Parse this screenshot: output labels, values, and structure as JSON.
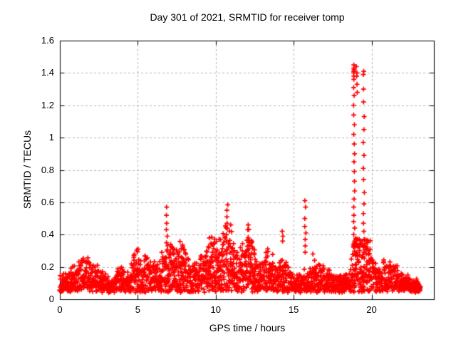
{
  "chart_data": {
    "type": "scatter",
    "title": "Day 301 of 2021, SRMTID for receiver tomp",
    "xlabel": "GPS time / hours",
    "ylabel": "SRMTID / TECUs",
    "xlim": [
      0,
      24
    ],
    "ylim": [
      0,
      1.6
    ],
    "xticks": {
      "values": [
        0,
        5,
        10,
        15,
        20
      ],
      "labels": [
        "0",
        "5",
        "10",
        "15",
        "20"
      ]
    },
    "yticks": {
      "values": [
        0,
        0.2,
        0.4,
        0.6,
        0.8,
        1.0,
        1.2,
        1.4,
        1.6
      ],
      "labels": [
        "0",
        "0.2",
        "0.4",
        "0.6",
        "0.8",
        "1",
        "1.2",
        "1.4",
        "1.6"
      ]
    },
    "grid": true,
    "legend": "none",
    "marker": "plus",
    "marker_color": "#ff0000",
    "grid_color": "#b4b4b4",
    "axis_color": "#000000",
    "baseline": 0.04,
    "sample_step_hours": 0.04,
    "data_end_hour": 23.15,
    "seed": 301,
    "envelope": [
      [
        0.0,
        0.14
      ],
      [
        0.4,
        0.15
      ],
      [
        0.8,
        0.17
      ],
      [
        1.2,
        0.21
      ],
      [
        1.6,
        0.26
      ],
      [
        1.9,
        0.23
      ],
      [
        2.2,
        0.2
      ],
      [
        2.6,
        0.18
      ],
      [
        3.0,
        0.14
      ],
      [
        3.4,
        0.12
      ],
      [
        3.8,
        0.19
      ],
      [
        4.1,
        0.16
      ],
      [
        4.4,
        0.14
      ],
      [
        4.7,
        0.22
      ],
      [
        5.0,
        0.3
      ],
      [
        5.3,
        0.22
      ],
      [
        5.6,
        0.26
      ],
      [
        5.9,
        0.2
      ],
      [
        6.2,
        0.21
      ],
      [
        6.5,
        0.24
      ],
      [
        6.8,
        0.3
      ],
      [
        7.1,
        0.3
      ],
      [
        7.4,
        0.36
      ],
      [
        7.7,
        0.33
      ],
      [
        8.0,
        0.3
      ],
      [
        8.3,
        0.23
      ],
      [
        8.6,
        0.2
      ],
      [
        8.9,
        0.22
      ],
      [
        9.2,
        0.24
      ],
      [
        9.5,
        0.33
      ],
      [
        9.8,
        0.35
      ],
      [
        10.1,
        0.32
      ],
      [
        10.4,
        0.38
      ],
      [
        10.7,
        0.45
      ],
      [
        10.9,
        0.42
      ],
      [
        11.2,
        0.34
      ],
      [
        11.5,
        0.25
      ],
      [
        11.8,
        0.32
      ],
      [
        12.0,
        0.42
      ],
      [
        12.3,
        0.33
      ],
      [
        12.6,
        0.27
      ],
      [
        12.9,
        0.22
      ],
      [
        13.2,
        0.26
      ],
      [
        13.5,
        0.3
      ],
      [
        13.8,
        0.2
      ],
      [
        14.1,
        0.22
      ],
      [
        14.3,
        0.3
      ],
      [
        14.6,
        0.19
      ],
      [
        14.9,
        0.16
      ],
      [
        15.2,
        0.13
      ],
      [
        15.5,
        0.14
      ],
      [
        15.8,
        0.16
      ],
      [
        16.1,
        0.18
      ],
      [
        16.4,
        0.24
      ],
      [
        16.7,
        0.22
      ],
      [
        17.0,
        0.17
      ],
      [
        17.3,
        0.19
      ],
      [
        17.6,
        0.13
      ],
      [
        17.9,
        0.13
      ],
      [
        18.2,
        0.15
      ],
      [
        18.5,
        0.13
      ],
      [
        18.7,
        0.2
      ],
      [
        18.9,
        0.4
      ],
      [
        19.1,
        0.45
      ],
      [
        19.3,
        0.42
      ],
      [
        19.5,
        0.38
      ],
      [
        19.7,
        0.36
      ],
      [
        19.9,
        0.33
      ],
      [
        20.1,
        0.25
      ],
      [
        20.4,
        0.18
      ],
      [
        20.7,
        0.2
      ],
      [
        21.0,
        0.23
      ],
      [
        21.3,
        0.2
      ],
      [
        21.6,
        0.21
      ],
      [
        21.9,
        0.15
      ],
      [
        22.2,
        0.14
      ],
      [
        22.5,
        0.12
      ],
      [
        22.8,
        0.11
      ],
      [
        23.0,
        0.09
      ],
      [
        23.15,
        0.08
      ]
    ],
    "spikes": [
      {
        "t": 5.05,
        "values": [
          0.31
        ]
      },
      {
        "t": 6.85,
        "values": [
          0.57,
          0.52,
          0.47,
          0.43,
          0.39,
          0.35
        ]
      },
      {
        "t": 9.6,
        "values": [
          0.38
        ]
      },
      {
        "t": 10.75,
        "values": [
          0.585,
          0.55,
          0.51,
          0.47
        ]
      },
      {
        "t": 10.95,
        "values": [
          0.46
        ]
      },
      {
        "t": 12.05,
        "values": [
          0.46,
          0.43
        ]
      },
      {
        "t": 14.3,
        "values": [
          0.42,
          0.39,
          0.36
        ]
      },
      {
        "t": 15.75,
        "values": [
          0.61,
          0.57,
          0.5,
          0.45,
          0.41,
          0.37,
          0.33,
          0.29
        ]
      },
      {
        "t": 16.2,
        "values": [
          0.28
        ]
      },
      {
        "t": 18.88,
        "values": [
          1.45,
          1.43,
          1.42,
          1.41,
          1.4,
          1.38,
          1.36,
          1.31,
          1.26,
          1.2,
          1.14,
          1.08,
          1.02,
          0.96,
          0.9,
          0.85,
          0.79,
          0.73,
          0.67,
          0.62,
          0.57,
          0.52,
          0.48,
          0.44,
          0.4,
          0.36,
          0.33
        ]
      },
      {
        "t": 19.05,
        "values": [
          1.44,
          1.4,
          1.38,
          1.33,
          1.28
        ]
      },
      {
        "t": 19.5,
        "values": [
          1.41,
          1.39,
          1.3,
          1.22,
          1.13,
          1.05,
          0.97,
          0.89,
          0.81,
          0.74,
          0.66,
          0.59,
          0.53,
          0.47,
          0.42,
          0.37,
          0.33,
          0.29
        ]
      }
    ]
  }
}
